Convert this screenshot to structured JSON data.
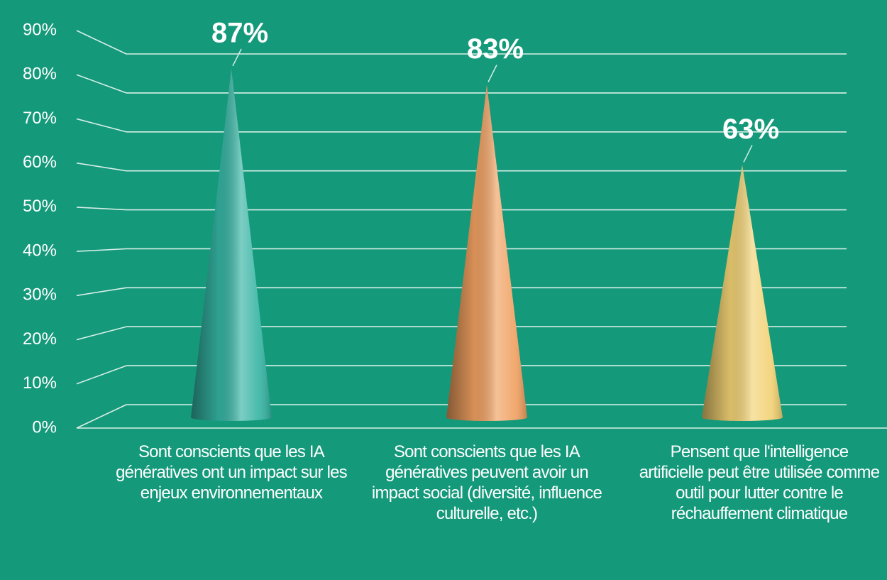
{
  "chart_data": {
    "type": "cone",
    "categories": [
      "Sont conscients que les IA génératives ont un impact sur les enjeux environnementaux",
      "Sont conscients que les IA génératives peuvent avoir un impact social (diversité, influence culturelle, etc.)",
      "Pensent que l'intelligence artificielle peut être utilisée comme outil pour lutter contre le réchauffement climatique"
    ],
    "values": [
      87,
      83,
      63
    ],
    "value_labels": [
      "87%",
      "83%",
      "63%"
    ],
    "colors": [
      "#34b3a2",
      "#f0a060",
      "#f2d274"
    ],
    "ylim": [
      0,
      90
    ],
    "yticks": [
      {
        "value": 0,
        "label": "0%"
      },
      {
        "value": 10,
        "label": "10%"
      },
      {
        "value": 20,
        "label": "20%"
      },
      {
        "value": 30,
        "label": "30%"
      },
      {
        "value": 40,
        "label": "40%"
      },
      {
        "value": 50,
        "label": "50%"
      },
      {
        "value": 60,
        "label": "60%"
      },
      {
        "value": 70,
        "label": "70%"
      },
      {
        "value": 80,
        "label": "80%"
      },
      {
        "value": 90,
        "label": "90%"
      }
    ],
    "grid": true
  }
}
